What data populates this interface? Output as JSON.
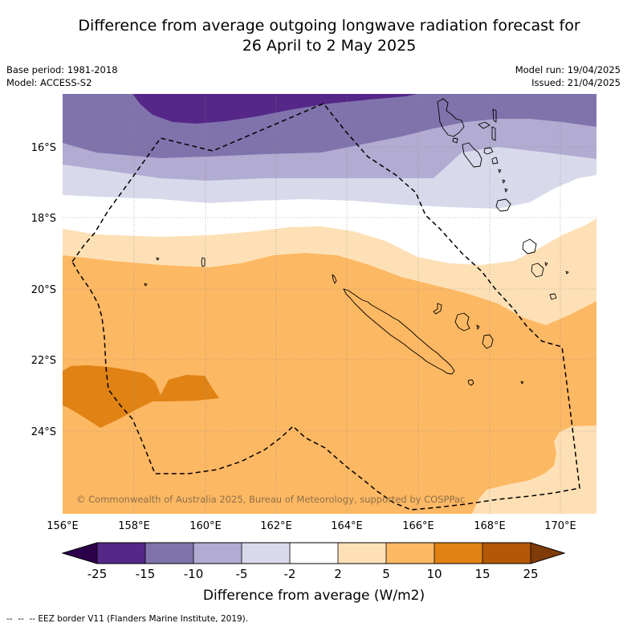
{
  "header": {
    "title_line1": "Difference from average outgoing longwave radiation forecast for",
    "title_line2": "26 April to 2 May 2025",
    "base_period": "Base period: 1981-2018",
    "model": "Model: ACCESS-S2",
    "model_run": "Model run: 19/04/2025",
    "issued": "Issued: 21/04/2025"
  },
  "map": {
    "lat_labels": [
      "16°S",
      "18°S",
      "20°S",
      "22°S",
      "24°S"
    ],
    "lon_labels": [
      "156°E",
      "158°E",
      "160°E",
      "162°E",
      "164°E",
      "166°E",
      "168°E",
      "170°E"
    ],
    "copyright": "© Commonwealth of Australia 2025, Bureau of Meteorology, supported by COSPPac"
  },
  "colorbar": {
    "ticks": [
      "-25",
      "-15",
      "-10",
      "-5",
      "-2",
      "2",
      "5",
      "10",
      "15",
      "25"
    ],
    "colors": [
      "#2d004b",
      "#542788",
      "#8073ac",
      "#b2abd2",
      "#d8daeb",
      "#ffffff",
      "#fee0b6",
      "#fdb863",
      "#e08214",
      "#b35806",
      "#7f3b08"
    ],
    "label": "Difference from average (W/m2)"
  },
  "footer": {
    "legend": "--  --  -- EEZ border V11 (Flanders Marine Institute, 2019)."
  }
}
